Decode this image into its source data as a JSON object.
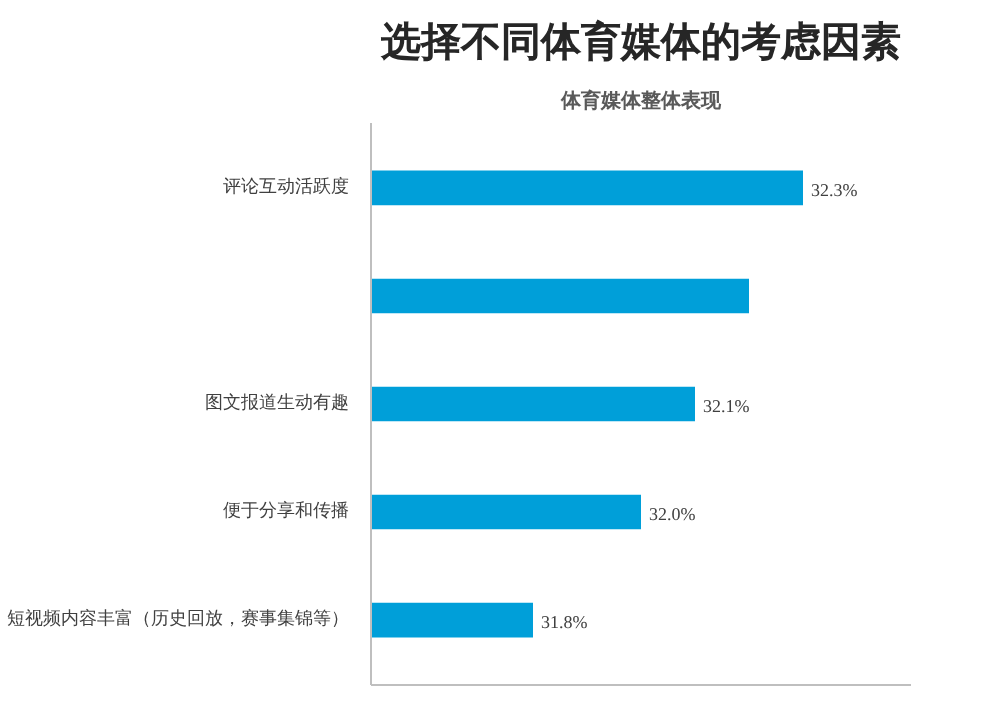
{
  "chart_data": {
    "type": "bar",
    "orientation": "horizontal",
    "title": "选择不同体育媒体的考虑因素",
    "subtitle": "体育媒体整体表现",
    "categories": [
      "评论互动活跃度",
      null,
      "图文报道生动有趣",
      "便于分享和传播",
      "短视频内容丰富（历史回放，赛事集锦等）"
    ],
    "values": [
      32.3,
      32.2,
      32.1,
      32.0,
      31.8
    ],
    "value_labels": [
      "32.3%",
      null,
      "32.1%",
      "32.0%",
      "31.8%"
    ],
    "color": "#009fd9",
    "xlim": [
      31.5,
      32.5
    ],
    "tick_labels": "y",
    "grid": false
  }
}
